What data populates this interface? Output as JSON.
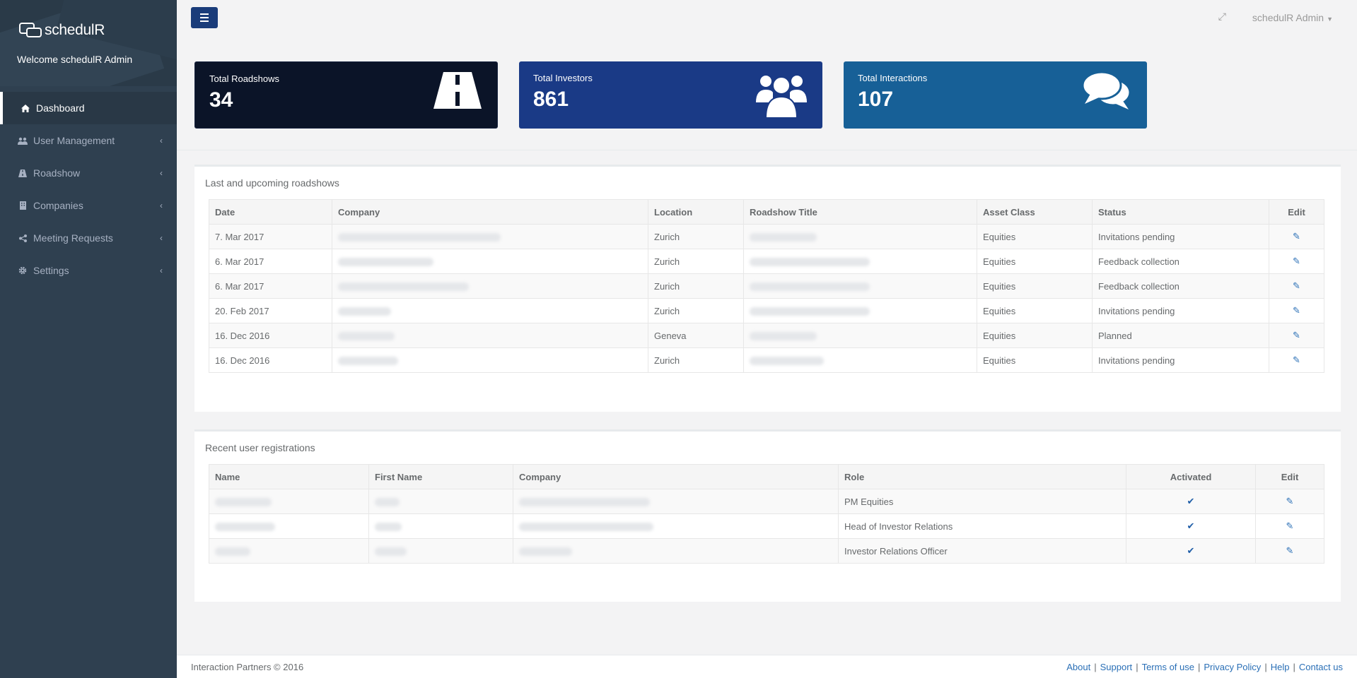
{
  "app": {
    "name": "schedulR",
    "welcome": "Welcome schedulR Admin"
  },
  "sidebar": {
    "items": [
      {
        "label": "Dashboard",
        "icon": "home-icon",
        "active": true
      },
      {
        "label": "User Management",
        "icon": "users-icon"
      },
      {
        "label": "Roadshow",
        "icon": "road-icon"
      },
      {
        "label": "Companies",
        "icon": "building-icon"
      },
      {
        "label": "Meeting Requests",
        "icon": "share-icon"
      },
      {
        "label": "Settings",
        "icon": "gear-icon"
      }
    ]
  },
  "header": {
    "user": "schedulR Admin"
  },
  "stats": [
    {
      "label": "Total Roadshows",
      "value": "34",
      "icon": "road-icon",
      "color": "#0b1428"
    },
    {
      "label": "Total Investors",
      "value": "861",
      "icon": "users-icon",
      "color": "#1a3a86"
    },
    {
      "label": "Total Interactions",
      "value": "107",
      "icon": "comments-icon",
      "color": "#176097"
    }
  ],
  "roadshows": {
    "title": "Last and upcoming roadshows",
    "columns": [
      "Date",
      "Company",
      "Location",
      "Roadshow Title",
      "Asset Class",
      "Status",
      "Edit"
    ],
    "rows": [
      {
        "date": "7. Mar 2017",
        "location": "Zurich",
        "asset": "Equities",
        "status": "Invitations pending"
      },
      {
        "date": "6. Mar 2017",
        "location": "Zurich",
        "asset": "Equities",
        "status": "Feedback collection"
      },
      {
        "date": "6. Mar 2017",
        "location": "Zurich",
        "asset": "Equities",
        "status": "Feedback collection"
      },
      {
        "date": "20. Feb 2017",
        "location": "Zurich",
        "asset": "Equities",
        "status": "Invitations pending"
      },
      {
        "date": "16. Dec 2016",
        "location": "Geneva",
        "asset": "Equities",
        "status": "Planned"
      },
      {
        "date": "16. Dec 2016",
        "location": "Zurich",
        "asset": "Equities",
        "status": "Invitations pending"
      }
    ]
  },
  "registrations": {
    "title": "Recent user registrations",
    "columns": [
      "Name",
      "First Name",
      "Company",
      "Role",
      "Activated",
      "Edit"
    ],
    "rows": [
      {
        "role": "PM Equities",
        "activated": true
      },
      {
        "role": "Head of Investor Relations",
        "activated": true
      },
      {
        "role": "Investor Relations Officer",
        "activated": true
      }
    ]
  },
  "footer": {
    "copyright": "Interaction Partners © 2016",
    "links": [
      "About",
      "Support",
      "Terms of use",
      "Privacy Policy",
      "Help",
      "Contact us"
    ]
  },
  "colors": {
    "sidebar": "#2f4050",
    "accent": "#1a3c7a",
    "link": "#2a6fb6"
  }
}
